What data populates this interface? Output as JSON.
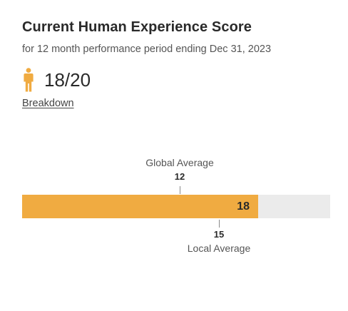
{
  "header": {
    "title": "Current Human Experience Score",
    "subtitle": "for 12 month performance period ending Dec 31, 2023"
  },
  "score": {
    "display": "18/20",
    "icon": "person-icon",
    "icon_color": "#f0ab41"
  },
  "links": {
    "breakdown": "Breakdown"
  },
  "chart_data": {
    "type": "bar",
    "scale_max": 23.5,
    "value": 18,
    "value_label": "18",
    "fill_color": "#f0ab41",
    "track_color": "#ebebeb",
    "markers": [
      {
        "label": "Global Average",
        "value": 12,
        "value_label": "12",
        "position": "above"
      },
      {
        "label": "Local Average",
        "value": 15,
        "value_label": "15",
        "position": "below"
      }
    ]
  }
}
